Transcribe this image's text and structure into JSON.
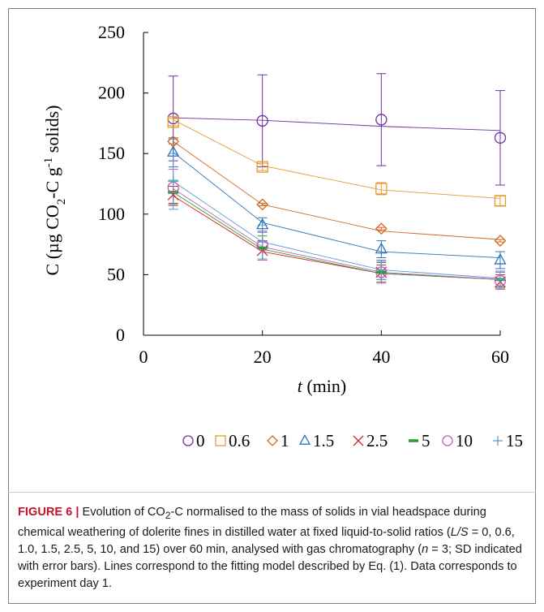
{
  "figure": {
    "label": "FIGURE 6",
    "separator": "|",
    "caption_html": "Evolution of CO<sub>2</sub>-C normalised to the mass of solids in vial headspace during chemical weathering of dolerite fines in distilled water at fixed liquid-to-solid ratios (<i>L/S</i> = 0, 0.6, 1.0, 1.5, 2.5, 5, 10, and 15) over 60 min, analysed with gas chromatography (<i>n</i> = 3; SD indicated with error bars). Lines correspond to the fitting model described by Eq. (1). Data corresponds to experiment day 1."
  },
  "chart_data": {
    "type": "scatter",
    "x": [
      5,
      20,
      40,
      60
    ],
    "xlim": [
      0,
      60
    ],
    "ylim": [
      0,
      250
    ],
    "xticks": [
      "0",
      "20",
      "40",
      "60"
    ],
    "yticks": [
      "0",
      "50",
      "100",
      "150",
      "200",
      "250"
    ],
    "xlabel": {
      "var": "t",
      "unit": " (min)"
    },
    "ylabel": {
      "prefix": "C (µg CO",
      "sub": "2",
      "mid": "-C g",
      "sup": "-1",
      "suffix": " solids)"
    },
    "grid": false,
    "legend_position": "bottom",
    "series": [
      {
        "name": "0",
        "marker": "circle",
        "color": "#7030a0",
        "values": [
          179,
          177,
          178,
          163
        ],
        "errors": [
          35,
          38,
          38,
          39
        ],
        "fit": [
          [
            5,
            179.5
          ],
          [
            20,
            177.5
          ],
          [
            40,
            172.5
          ],
          [
            60,
            169
          ]
        ]
      },
      {
        "name": "0.6",
        "marker": "square",
        "color": "#e69a2e",
        "values": [
          176,
          139,
          121,
          111
        ],
        "errors": [
          3,
          3,
          5,
          4
        ],
        "fit": [
          [
            5,
            178
          ],
          [
            20,
            140
          ],
          [
            40,
            120
          ],
          [
            60,
            113
          ]
        ]
      },
      {
        "name": "1",
        "marker": "diamond",
        "color": "#d2691e",
        "values": [
          160,
          108,
          88,
          78
        ],
        "errors": [
          2,
          1,
          1,
          1
        ],
        "fit": [
          [
            5,
            160
          ],
          [
            20,
            108
          ],
          [
            40,
            86
          ],
          [
            60,
            79
          ]
        ]
      },
      {
        "name": "1.5",
        "marker": "triangle",
        "color": "#2e75b6",
        "values": [
          151,
          91,
          71,
          62
        ],
        "errors": [
          12,
          6,
          7,
          7
        ],
        "fit": [
          [
            5,
            151
          ],
          [
            20,
            93
          ],
          [
            40,
            69
          ],
          [
            60,
            64
          ]
        ]
      },
      {
        "name": "2.5",
        "marker": "cross",
        "color": "#d62728",
        "values": [
          116,
          70,
          52,
          44
        ],
        "errors": [
          7,
          8,
          6,
          6
        ],
        "fit": [
          [
            5,
            115
          ],
          [
            20,
            69
          ],
          [
            40,
            51
          ],
          [
            60,
            46
          ]
        ]
      },
      {
        "name": "5",
        "marker": "dash",
        "color": "#2ca02c",
        "values": [
          118,
          72,
          52,
          46
        ],
        "errors": [
          10,
          10,
          8,
          6
        ],
        "fit": [
          [
            5,
            118
          ],
          [
            20,
            71
          ],
          [
            40,
            51
          ],
          [
            60,
            46
          ]
        ]
      },
      {
        "name": "10",
        "marker": "circle",
        "color": "#c15ab8",
        "values": [
          122,
          74,
          52,
          45
        ],
        "errors": [
          15,
          12,
          9,
          7
        ],
        "fit": [
          [
            5,
            121
          ],
          [
            20,
            73
          ],
          [
            40,
            52
          ],
          [
            60,
            46
          ]
        ]
      },
      {
        "name": "15",
        "marker": "plus",
        "color": "#5b9bd5",
        "values": [
          127,
          77,
          54,
          46
        ],
        "errors": [
          23,
          14,
          8,
          7
        ],
        "fit": [
          [
            5,
            127
          ],
          [
            20,
            77
          ],
          [
            40,
            54
          ],
          [
            60,
            47
          ]
        ]
      }
    ]
  }
}
